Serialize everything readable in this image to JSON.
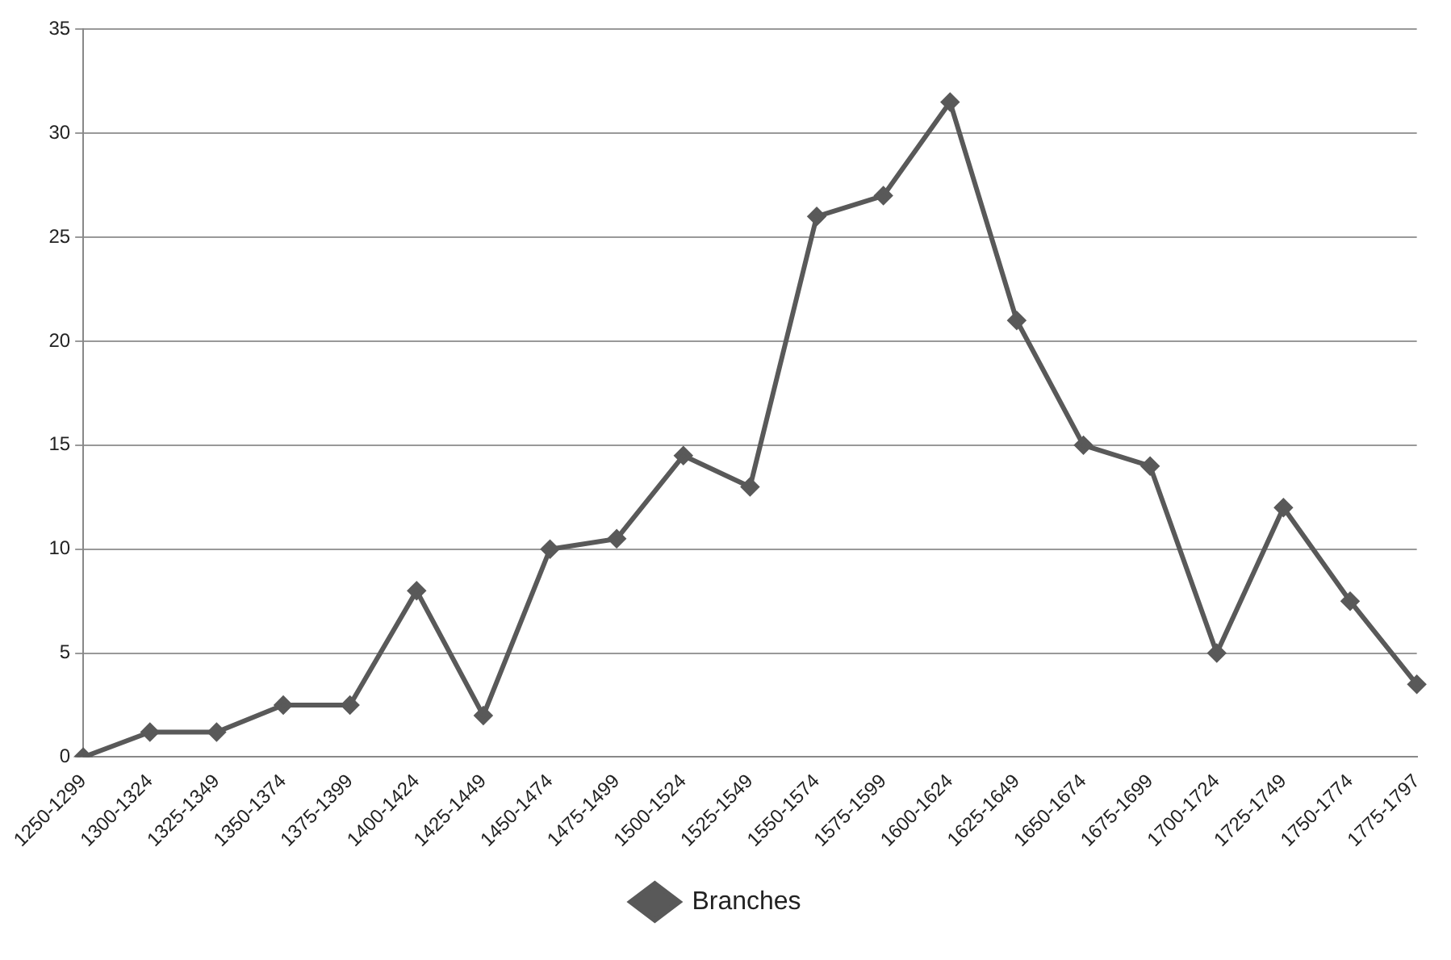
{
  "chart_data": {
    "type": "line",
    "categories": [
      "1250-1299",
      "1300-1324",
      "1325-1349",
      "1350-1374",
      "1375-1399",
      "1400-1424",
      "1425-1449",
      "1450-1474",
      "1475-1499",
      "1500-1524",
      "1525-1549",
      "1550-1574",
      "1575-1599",
      "1600-1624",
      "1625-1649",
      "1650-1674",
      "1675-1699",
      "1700-1724",
      "1725-1749",
      "1750-1774",
      "1775-1797"
    ],
    "series": [
      {
        "name": "Branches",
        "color": "#595959",
        "values": [
          0,
          1.2,
          1.2,
          2.5,
          2.5,
          8,
          2,
          10,
          10.5,
          14.5,
          13,
          26,
          27,
          31.5,
          21,
          15,
          14,
          5,
          12,
          7.5,
          3.5
        ]
      }
    ],
    "ylim": [
      0,
      35
    ],
    "yticks": [
      0,
      5,
      10,
      15,
      20,
      25,
      30,
      35
    ],
    "grid": "y",
    "legend": "bottom",
    "marker": "diamond",
    "line_style": "solid"
  }
}
